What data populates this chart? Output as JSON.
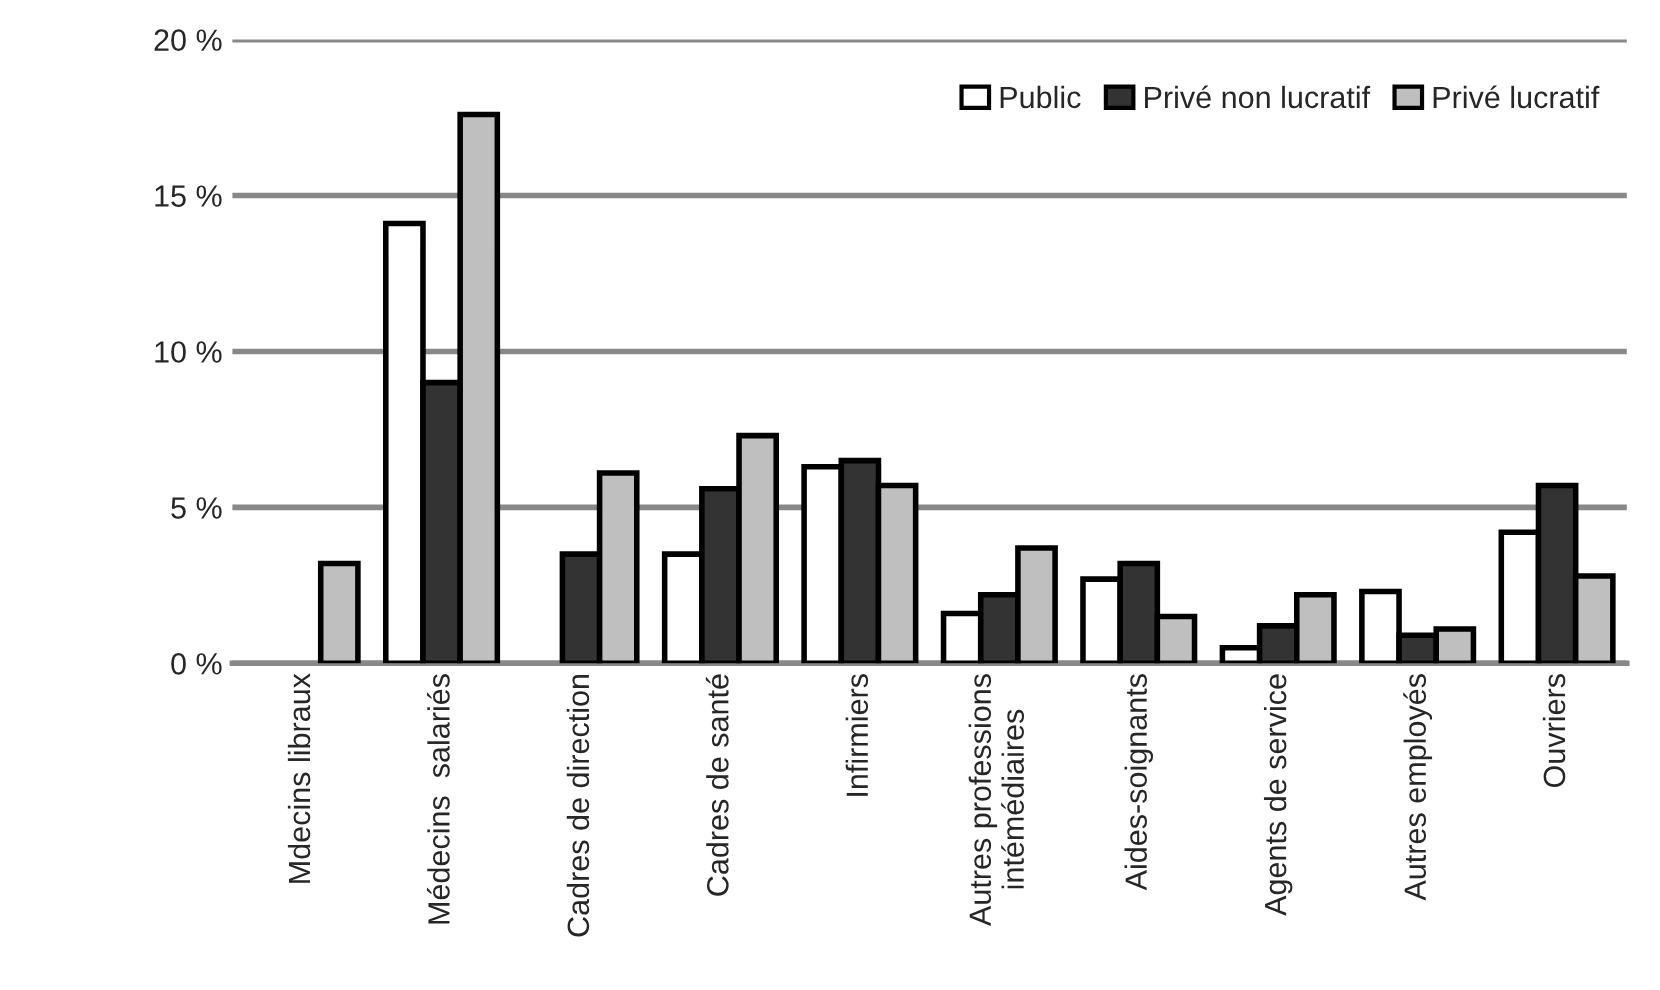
{
  "chart_data": {
    "type": "bar",
    "categories": [
      "Mdecins libraux",
      "Médecins  salariés",
      "Cadres de direction",
      "Cadres de santé",
      "Infirmiers",
      "Autres professions\nintémédiaires",
      "Aides-soignants",
      "Agents de service",
      "Autres employés",
      "Ouvriers"
    ],
    "series": [
      {
        "name": "Public",
        "color": "#ffffff",
        "values": [
          null,
          14.1,
          null,
          3.5,
          6.3,
          1.6,
          2.7,
          0.5,
          2.3,
          4.2
        ]
      },
      {
        "name": "Privé non lucratif",
        "color": "#333333",
        "values": [
          null,
          9.0,
          3.5,
          5.6,
          6.5,
          2.2,
          3.2,
          1.2,
          0.9,
          5.7
        ]
      },
      {
        "name": "Privé lucratif",
        "color": "#bfbfbf",
        "values": [
          3.2,
          17.6,
          6.1,
          7.3,
          5.7,
          3.7,
          1.5,
          2.2,
          1.1,
          2.8
        ]
      }
    ],
    "ylim": [
      0,
      20
    ],
    "yticks": [
      {
        "value": 0,
        "label": "0 %"
      },
      {
        "value": 5,
        "label": "5 %"
      },
      {
        "value": 10,
        "label": "10 %"
      },
      {
        "value": 15,
        "label": "15 %"
      },
      {
        "value": 20,
        "label": "20 %"
      }
    ],
    "grid": "y",
    "legend": "top right"
  }
}
